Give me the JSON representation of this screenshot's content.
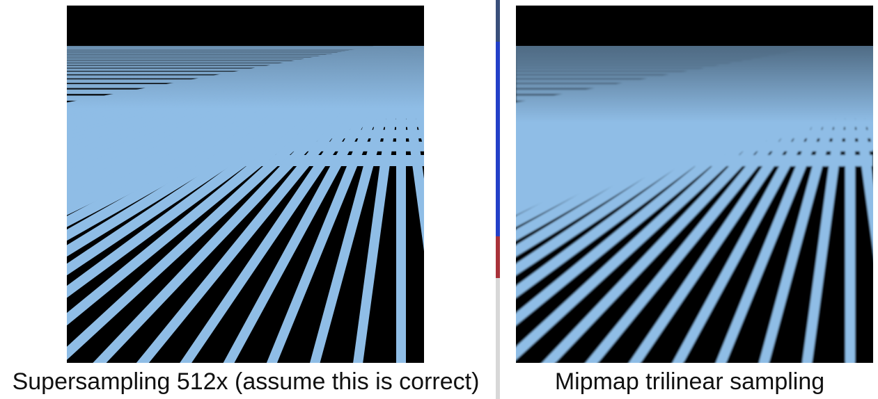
{
  "panels": [
    {
      "id": "supersampling",
      "caption": "Supersampling 512x (assume this is correct)"
    },
    {
      "id": "mipmap-trilinear",
      "caption": "Mipmap trilinear sampling"
    }
  ],
  "colors": {
    "background": "#ffffff",
    "sky": "#000000",
    "grid_line": "#8fbde6",
    "cell": "#000000",
    "horizon_haze": "#4f6b84"
  }
}
